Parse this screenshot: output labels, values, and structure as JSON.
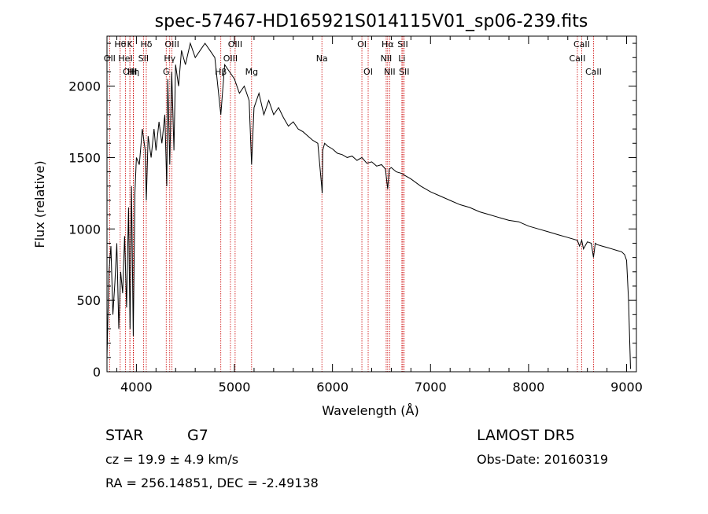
{
  "header": {
    "title": "spec-57467-HD165921S014115V01_sp06-239.fits"
  },
  "info": {
    "class": "STAR",
    "subclass": "G7",
    "survey": "LAMOST DR5",
    "cz": "cz = 19.9 ± 4.9 km/s",
    "obs_date": "Obs-Date: 20160319",
    "radec": "RA = 256.14851, DEC = -2.49138"
  },
  "chart_data": {
    "type": "line",
    "title": "spec-57467-HD165921S014115V01_sp06-239.fits",
    "xlabel": "Wavelength (Å)",
    "ylabel": "Flux (relative)",
    "xlim": [
      3700,
      9100
    ],
    "ylim": [
      0,
      2350
    ],
    "x_ticks": [
      4000,
      5000,
      6000,
      7000,
      8000,
      9000
    ],
    "y_ticks": [
      0,
      500,
      1000,
      1500,
      2000
    ],
    "grid": false,
    "line_color": "#000000",
    "marker_color": "#cc0000",
    "series": [
      {
        "x": [
          3700,
          3720,
          3740,
          3760,
          3780,
          3800,
          3820,
          3840,
          3860,
          3880,
          3900,
          3920,
          3935,
          3950,
          3968,
          3985,
          4000,
          4030,
          4060,
          4090,
          4101,
          4120,
          4150,
          4180,
          4200,
          4230,
          4260,
          4290,
          4310,
          4320,
          4340,
          4360,
          4383,
          4400,
          4430,
          4460,
          4500,
          4550,
          4600,
          4650,
          4700,
          4750,
          4800,
          4861,
          4900,
          4950,
          5000,
          5050,
          5100,
          5150,
          5175,
          5200,
          5250,
          5300,
          5350,
          5400,
          5450,
          5500,
          5550,
          5600,
          5650,
          5700,
          5750,
          5800,
          5850,
          5890,
          5895,
          5900,
          5920,
          5950,
          6000,
          6050,
          6100,
          6150,
          6200,
          6250,
          6300,
          6350,
          6400,
          6450,
          6500,
          6540,
          6563,
          6580,
          6600,
          6650,
          6700,
          6750,
          6800,
          6900,
          7000,
          7100,
          7200,
          7300,
          7400,
          7500,
          7600,
          7700,
          7800,
          7900,
          8000,
          8100,
          8200,
          8300,
          8400,
          8498,
          8520,
          8542,
          8560,
          8600,
          8640,
          8662,
          8680,
          8700,
          8750,
          8800,
          8850,
          8900,
          8950,
          8980,
          9000,
          9020,
          9040
        ],
        "y": [
          100,
          700,
          880,
          400,
          620,
          900,
          300,
          700,
          550,
          950,
          450,
          1150,
          300,
          1300,
          250,
          1250,
          1500,
          1450,
          1700,
          1550,
          1200,
          1650,
          1500,
          1700,
          1550,
          1750,
          1600,
          1800,
          1300,
          2050,
          1450,
          2100,
          1550,
          2150,
          2000,
          2250,
          2150,
          2300,
          2200,
          2250,
          2300,
          2250,
          2200,
          1800,
          2150,
          2100,
          2050,
          1950,
          2000,
          1900,
          1450,
          1850,
          1950,
          1800,
          1900,
          1800,
          1850,
          1780,
          1720,
          1750,
          1700,
          1680,
          1650,
          1620,
          1600,
          1300,
          1250,
          1550,
          1600,
          1580,
          1560,
          1530,
          1520,
          1500,
          1510,
          1480,
          1500,
          1460,
          1470,
          1440,
          1450,
          1420,
          1280,
          1420,
          1430,
          1400,
          1390,
          1370,
          1350,
          1300,
          1260,
          1230,
          1200,
          1170,
          1150,
          1120,
          1100,
          1080,
          1060,
          1050,
          1020,
          1000,
          980,
          960,
          940,
          920,
          880,
          920,
          860,
          910,
          900,
          800,
          900,
          890,
          880,
          870,
          860,
          850,
          840,
          820,
          780,
          500,
          20
        ]
      }
    ],
    "line_markers": [
      {
        "wavelength": 3727,
        "label": "OII",
        "row": 1
      },
      {
        "wavelength": 3835,
        "label": "Hθ",
        "row": 0
      },
      {
        "wavelength": 3889,
        "label": "HeI",
        "row": 1
      },
      {
        "wavelength": 3934,
        "label": "K",
        "row": 0
      },
      {
        "wavelength": 3934,
        "label": "OIII",
        "row": 2
      },
      {
        "wavelength": 3968,
        "label": "H",
        "row": 2
      },
      {
        "wavelength": 3970,
        "label": "Hη",
        "row": 2
      },
      {
        "wavelength": 4072,
        "label": "SII",
        "row": 1
      },
      {
        "wavelength": 4101,
        "label": "Hδ",
        "row": 0
      },
      {
        "wavelength": 4304,
        "label": "G",
        "row": 2
      },
      {
        "wavelength": 4340,
        "label": "Hγ",
        "row": 1
      },
      {
        "wavelength": 4363,
        "label": "OIII",
        "row": 0
      },
      {
        "wavelength": 4861,
        "label": "Hβ",
        "row": 2
      },
      {
        "wavelength": 4959,
        "label": "OIII",
        "row": 1
      },
      {
        "wavelength": 5007,
        "label": "OIII",
        "row": 0
      },
      {
        "wavelength": 5175,
        "label": "Mg",
        "row": 2
      },
      {
        "wavelength": 5892,
        "label": "Na",
        "row": 1
      },
      {
        "wavelength": 6300,
        "label": "OI",
        "row": 0
      },
      {
        "wavelength": 6364,
        "label": "OI",
        "row": 2
      },
      {
        "wavelength": 6548,
        "label": "NII",
        "row": 1
      },
      {
        "wavelength": 6563,
        "label": "Hα",
        "row": 0
      },
      {
        "wavelength": 6583,
        "label": "NII",
        "row": 2
      },
      {
        "wavelength": 6708,
        "label": "Li",
        "row": 1
      },
      {
        "wavelength": 6717,
        "label": "SII",
        "row": 0
      },
      {
        "wavelength": 6731,
        "label": "SII",
        "row": 2
      },
      {
        "wavelength": 8498,
        "label": "CaII",
        "row": 1
      },
      {
        "wavelength": 8542,
        "label": "CaII",
        "row": 0
      },
      {
        "wavelength": 8662,
        "label": "CaII",
        "row": 2
      }
    ]
  }
}
